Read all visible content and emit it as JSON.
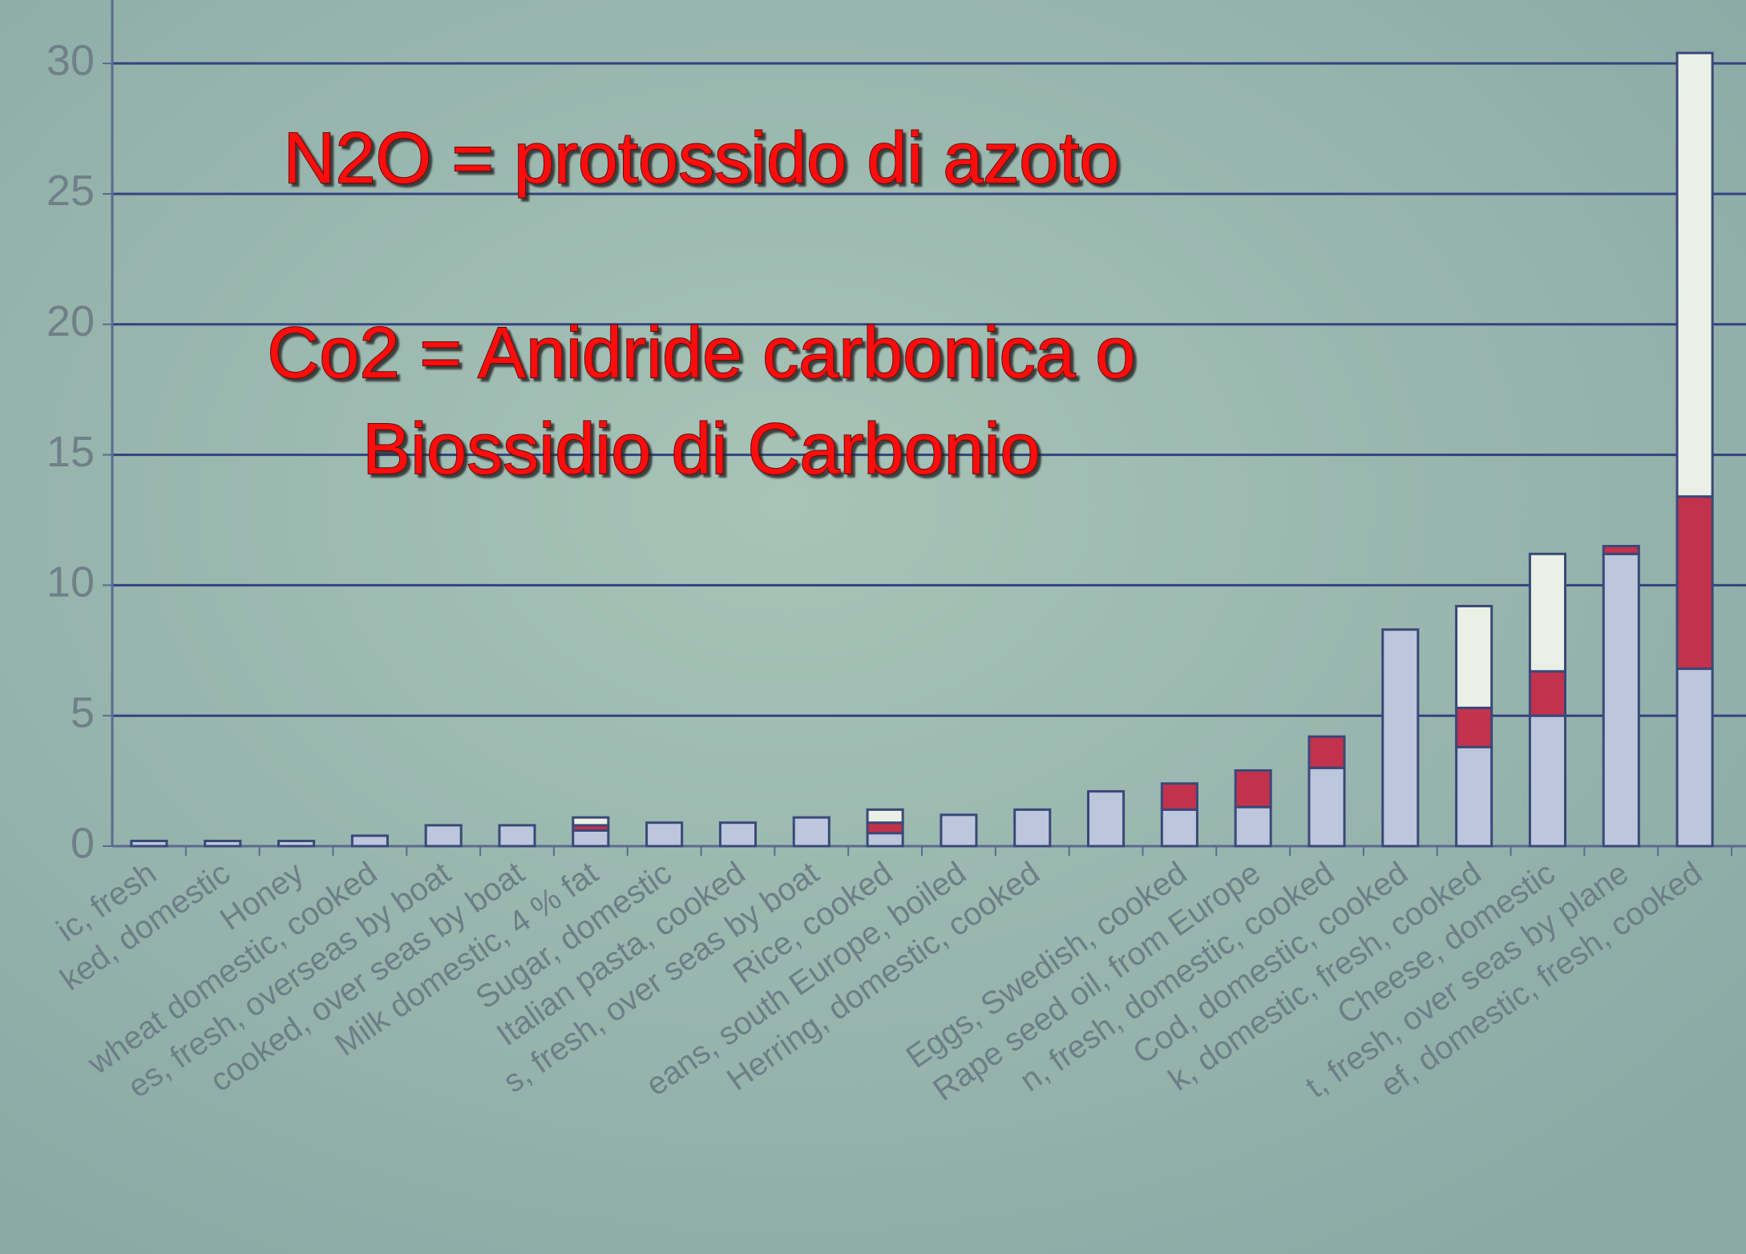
{
  "chart_data": {
    "type": "stacked_bar",
    "annotations": [
      "N2O = protossido di azoto",
      "Co2 = Anidride carbonica o",
      "Biossidio di Carbonio"
    ],
    "categories": [
      "ic, fresh",
      "ked, domestic",
      "Honey",
      "wheat domestic, cooked",
      "es, fresh, overseas by boat",
      "cooked, over seas by boat",
      "Milk domestic, 4 % fat",
      "Sugar, domestic",
      "Italian pasta, cooked",
      "s, fresh, over seas by boat",
      "Rice, cooked",
      "eans, south Europe, boiled",
      "Herring, domestic, cooked",
      null,
      "Eggs, Swedish, cooked",
      "Rape seed oil, from Europe",
      "n, fresh, domestic, cooked",
      "Cod, domestic, cooked",
      "k, domestic, fresh, cooked",
      "Cheese, domestic",
      "t, fresh, over seas by plane",
      "ef, domestic, fresh, cooked"
    ],
    "series": [
      {
        "color": "#bcc6dc",
        "values": [
          0.2,
          0.2,
          0.2,
          0.4,
          0.8,
          0.8,
          0.6,
          0.9,
          0.9,
          1.1,
          0.5,
          1.2,
          1.4,
          2.1,
          1.4,
          1.5,
          3.0,
          8.3,
          3.8,
          5.0,
          11.2,
          6.8
        ]
      },
      {
        "color": "#c2324c",
        "values": [
          null,
          null,
          null,
          null,
          null,
          null,
          0.2,
          null,
          null,
          null,
          0.4,
          null,
          null,
          null,
          1.0,
          1.4,
          1.2,
          null,
          1.5,
          1.7,
          0.3,
          6.6
        ]
      },
      {
        "color": "#eaf0e6",
        "values": [
          null,
          null,
          null,
          null,
          null,
          null,
          0.3,
          null,
          null,
          null,
          0.5,
          null,
          null,
          null,
          null,
          null,
          null,
          null,
          3.9,
          4.5,
          null,
          17
        ]
      }
    ],
    "ylim": [
      0,
      32
    ],
    "yticks": [
      0,
      5,
      10,
      15,
      20,
      25,
      30
    ],
    "grid": true
  }
}
